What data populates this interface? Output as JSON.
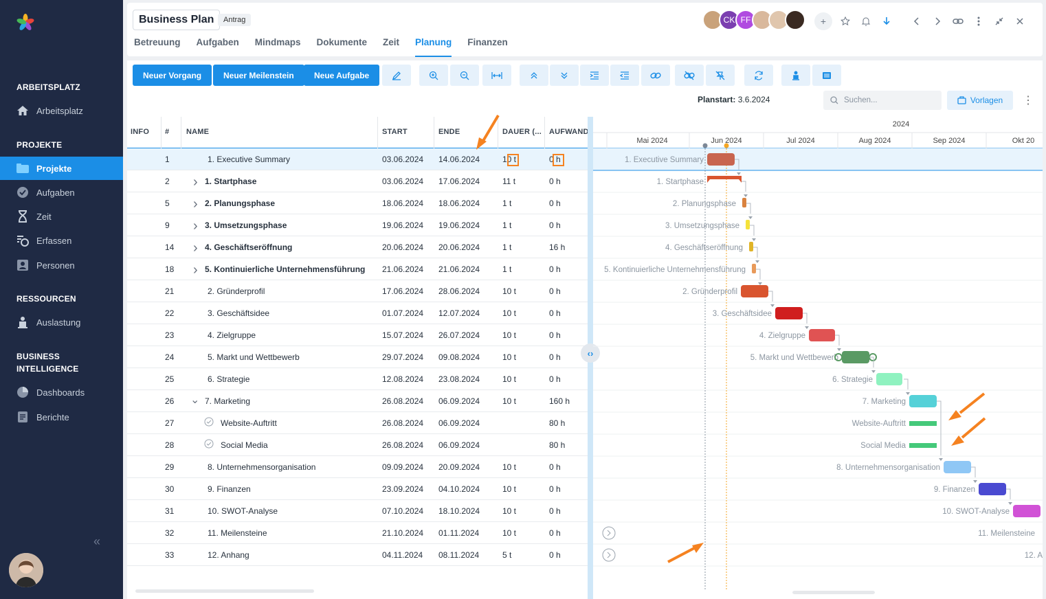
{
  "sidebar": {
    "sections": [
      "ARBEITSPLATZ",
      "PROJEKTE",
      "RESSOURCEN",
      "BUSINESS",
      "INTELLIGENCE"
    ],
    "items": [
      {
        "label": "Arbeitsplatz",
        "icon": "home-icon"
      },
      {
        "label": "Projekte",
        "icon": "folder-icon"
      },
      {
        "label": "Aufgaben",
        "icon": "check-circle-icon"
      },
      {
        "label": "Zeit",
        "icon": "hourglass-icon"
      },
      {
        "label": "Erfassen",
        "icon": "clock-list-icon"
      },
      {
        "label": "Personen",
        "icon": "contact-card-icon"
      },
      {
        "label": "Auslastung",
        "icon": "person-load-icon"
      },
      {
        "label": "Dashboards",
        "icon": "pie-chart-icon"
      },
      {
        "label": "Berichte",
        "icon": "report-icon"
      }
    ],
    "collapse": "«"
  },
  "header": {
    "title": "Business Plan",
    "badge": "Antrag",
    "tabs": [
      "Betreuung",
      "Aufgaben",
      "Mindmaps",
      "Dokumente",
      "Zeit",
      "Planung",
      "Finanzen"
    ],
    "avatars": [
      {
        "initials": "",
        "color": "#c9a27a"
      },
      {
        "initials": "CK",
        "color": "#7b3fb0"
      },
      {
        "initials": "FF",
        "color": "#b04be0"
      },
      {
        "initials": "",
        "color": "#d9b89c"
      },
      {
        "initials": "",
        "color": "#e0c6ad"
      },
      {
        "initials": "",
        "color": "#3a2a22"
      }
    ],
    "add": "+"
  },
  "toolbar": {
    "new_task": "Neuer Vorgang",
    "new_milestone": "Neuer Meilenstein",
    "new_todo": "Neue Aufgabe",
    "planstart_label": "Planstart:",
    "planstart_value": "3.6.2024",
    "search_placeholder": "Suchen...",
    "templates": "Vorlagen"
  },
  "grid": {
    "headers": [
      "INFO",
      "#",
      "NAME",
      "START",
      "ENDE",
      "DAUER (...",
      "AUFWAND"
    ],
    "rows": [
      {
        "id": "1",
        "name": "1. Executive Summary",
        "start": "03.06.2024",
        "end": "14.06.2024",
        "dur": "10 t",
        "eff": "0 h",
        "bold": false,
        "chev": "",
        "indent": 1,
        "sel": true
      },
      {
        "id": "2",
        "name": "1. Startphase",
        "start": "03.06.2024",
        "end": "17.06.2024",
        "dur": "11 t",
        "eff": "0 h",
        "bold": true,
        "chev": "›",
        "indent": 0
      },
      {
        "id": "5",
        "name": "2. Planungsphase",
        "start": "18.06.2024",
        "end": "18.06.2024",
        "dur": "1 t",
        "eff": "0 h",
        "bold": true,
        "chev": "›",
        "indent": 0
      },
      {
        "id": "9",
        "name": "3. Umsetzungsphase",
        "start": "19.06.2024",
        "end": "19.06.2024",
        "dur": "1 t",
        "eff": "0 h",
        "bold": true,
        "chev": "›",
        "indent": 0
      },
      {
        "id": "14",
        "name": "4. Geschäftseröffnung",
        "start": "20.06.2024",
        "end": "20.06.2024",
        "dur": "1 t",
        "eff": "16 h",
        "bold": true,
        "chev": "›",
        "indent": 0
      },
      {
        "id": "18",
        "name": "5. Kontinuierliche Unternehmensführung",
        "start": "21.06.2024",
        "end": "21.06.2024",
        "dur": "1 t",
        "eff": "0 h",
        "bold": true,
        "chev": "›",
        "indent": 0
      },
      {
        "id": "21",
        "name": "2. Gründerprofil",
        "start": "17.06.2024",
        "end": "28.06.2024",
        "dur": "10 t",
        "eff": "0 h",
        "bold": false,
        "chev": "",
        "indent": 1
      },
      {
        "id": "22",
        "name": "3. Geschäftsidee",
        "start": "01.07.2024",
        "end": "12.07.2024",
        "dur": "10 t",
        "eff": "0 h",
        "bold": false,
        "chev": "",
        "indent": 1
      },
      {
        "id": "23",
        "name": "4. Zielgruppe",
        "start": "15.07.2024",
        "end": "26.07.2024",
        "dur": "10 t",
        "eff": "0 h",
        "bold": false,
        "chev": "",
        "indent": 1
      },
      {
        "id": "24",
        "name": "5. Markt und Wettbewerb",
        "start": "29.07.2024",
        "end": "09.08.2024",
        "dur": "10 t",
        "eff": "0 h",
        "bold": false,
        "chev": "",
        "indent": 1
      },
      {
        "id": "25",
        "name": "6. Strategie",
        "start": "12.08.2024",
        "end": "23.08.2024",
        "dur": "10 t",
        "eff": "0 h",
        "bold": false,
        "chev": "",
        "indent": 1
      },
      {
        "id": "26",
        "name": "7. Marketing",
        "start": "26.08.2024",
        "end": "06.09.2024",
        "dur": "10 t",
        "eff": "160 h",
        "bold": false,
        "chev": "⌄",
        "indent": 0
      },
      {
        "id": "27",
        "name": "Website-Auftritt",
        "start": "26.08.2024",
        "end": "06.09.2024",
        "dur": "",
        "eff": "80 h",
        "bold": false,
        "chev": "",
        "indent": 2
      },
      {
        "id": "28",
        "name": "Social Media",
        "start": "26.08.2024",
        "end": "06.09.2024",
        "dur": "",
        "eff": "80 h",
        "bold": false,
        "chev": "",
        "indent": 2
      },
      {
        "id": "29",
        "name": "8. Unternehmensorganisation",
        "start": "09.09.2024",
        "end": "20.09.2024",
        "dur": "10 t",
        "eff": "0 h",
        "bold": false,
        "chev": "",
        "indent": 1
      },
      {
        "id": "30",
        "name": "9. Finanzen",
        "start": "23.09.2024",
        "end": "04.10.2024",
        "dur": "10 t",
        "eff": "0 h",
        "bold": false,
        "chev": "",
        "indent": 1
      },
      {
        "id": "31",
        "name": "10. SWOT-Analyse",
        "start": "07.10.2024",
        "end": "18.10.2024",
        "dur": "10 t",
        "eff": "0 h",
        "bold": false,
        "chev": "",
        "indent": 1
      },
      {
        "id": "32",
        "name": "11. Meilensteine",
        "start": "21.10.2024",
        "end": "01.11.2024",
        "dur": "10 t",
        "eff": "0 h",
        "bold": false,
        "chev": "",
        "indent": 1
      },
      {
        "id": "33",
        "name": "12. Anhang",
        "start": "04.11.2024",
        "end": "08.11.2024",
        "dur": "5 t",
        "eff": "0 h",
        "bold": false,
        "chev": "",
        "indent": 1
      }
    ]
  },
  "gantt": {
    "year": "2024",
    "months": [
      "024",
      "Mai 2024",
      "Jun 2024",
      "Jul 2024",
      "Aug 2024",
      "Sep 2024",
      "Okt 20"
    ],
    "labels": [
      "1. Executive Summary",
      "1. Startphase",
      "2. Planungsphase",
      "3. Umsetzungsphase",
      "4. Geschäftseröffnung",
      "5. Kontinuierliche Unternehmensführung",
      "2. Gründerprofil",
      "3. Geschäftsidee",
      "4. Zielgruppe",
      "5. Markt und Wettbewerb",
      "6. Strategie",
      "7. Marketing",
      "Website-Auftritt",
      "Social Media",
      "8. Unternehmensorganisation",
      "9. Finanzen",
      "10. SWOT-Analyse",
      "11. Meilensteine",
      "12. A"
    ],
    "colors": [
      "#c8654f",
      "#d9552f",
      "#d9823f",
      "#f5e23a",
      "#e0b428",
      "#e89a5a",
      "#d9552f",
      "#d01e1e",
      "#e05353",
      "#5a9a64",
      "#8ff2c0",
      "#55d1d8",
      "#45c97a",
      "#45c97a",
      "#8fc7f5",
      "#4a4ad1",
      "#d152d6"
    ]
  }
}
